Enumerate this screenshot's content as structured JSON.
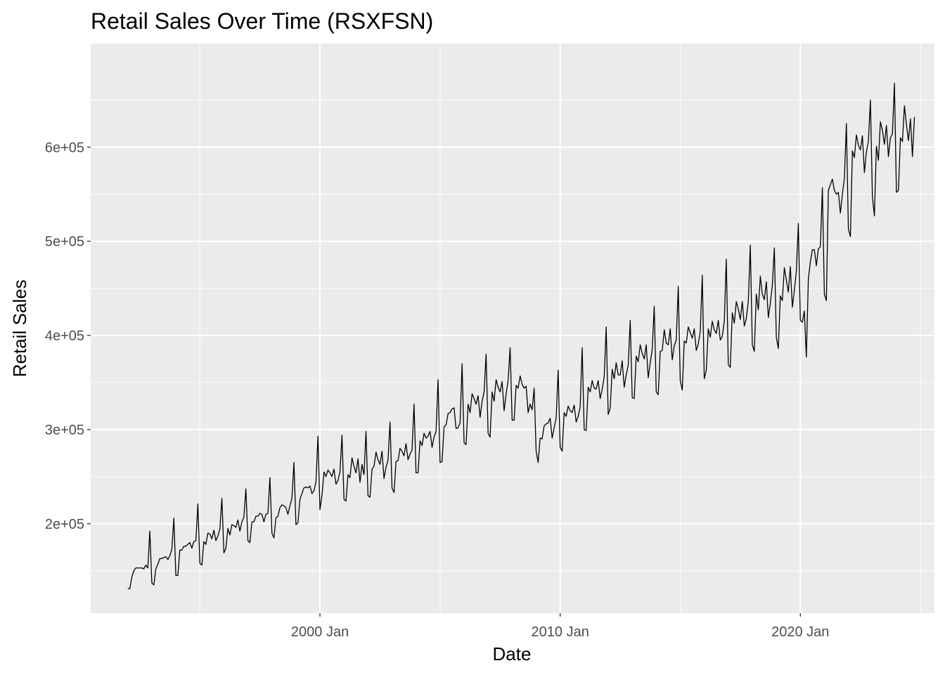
{
  "chart_data": {
    "type": "line",
    "title": "Retail Sales Over Time (RSXFSN)",
    "xlabel": "Date",
    "ylabel": "Retail Sales",
    "x_range": [
      "1990-06-15",
      "2025-08-01"
    ],
    "ylim": [
      105000,
      1000000
    ],
    "y_display_max": 710000,
    "x_ticks": [
      {
        "date": "2000-01-01",
        "label": "2000 Jan"
      },
      {
        "date": "2010-01-01",
        "label": "2010 Jan"
      },
      {
        "date": "2020-01-01",
        "label": "2020 Jan"
      }
    ],
    "x_minor_ticks": [
      "1995-01-01",
      "2005-01-01",
      "2015-01-01",
      "2025-01-01"
    ],
    "y_ticks": [
      {
        "value": 200000,
        "label": "2e+05"
      },
      {
        "value": 300000,
        "label": "3e+05"
      },
      {
        "value": 400000,
        "label": "4e+05"
      },
      {
        "value": 500000,
        "label": "5e+05"
      },
      {
        "value": 600000,
        "label": "6e+05"
      }
    ],
    "y_minor_ticks": [
      150000,
      250000,
      350000,
      450000,
      550000,
      650000
    ],
    "series": [
      {
        "color": "#000000",
        "start": "1992-01",
        "frequency": "monthly",
        "values": [
          131000,
          131000,
          143000,
          150000,
          153000,
          153000,
          153000,
          153000,
          152000,
          156000,
          153000,
          192000,
          137000,
          135000,
          152000,
          157000,
          163000,
          163000,
          164000,
          165000,
          162000,
          166000,
          173000,
          206000,
          145000,
          145000,
          172000,
          172000,
          176000,
          176000,
          178000,
          180000,
          174000,
          181000,
          182000,
          221000,
          158000,
          156000,
          181000,
          178000,
          190000,
          189000,
          184000,
          193000,
          182000,
          187000,
          194000,
          227000,
          169000,
          174000,
          195000,
          188000,
          199000,
          198000,
          196000,
          204000,
          192000,
          202000,
          207000,
          237000,
          182000,
          180000,
          202000,
          202000,
          208000,
          208000,
          211000,
          210000,
          202000,
          210000,
          211000,
          249000,
          190000,
          185000,
          206000,
          208000,
          217000,
          220000,
          219000,
          217000,
          210000,
          219000,
          227000,
          265000,
          199000,
          201000,
          226000,
          232000,
          238000,
          239000,
          238000,
          240000,
          232000,
          235000,
          244000,
          293000,
          215000,
          230000,
          255000,
          250000,
          257000,
          254000,
          250000,
          258000,
          242000,
          246000,
          255000,
          294000,
          226000,
          224000,
          252000,
          249000,
          270000,
          261000,
          254000,
          269000,
          244000,
          263000,
          252000,
          298000,
          230000,
          228000,
          258000,
          261000,
          276000,
          268000,
          263000,
          277000,
          248000,
          260000,
          267000,
          308000,
          238000,
          233000,
          266000,
          267000,
          280000,
          277000,
          272000,
          285000,
          268000,
          274000,
          278000,
          327000,
          254000,
          254000,
          288000,
          283000,
          296000,
          291000,
          293000,
          298000,
          281000,
          292000,
          298000,
          353000,
          265000,
          266000,
          303000,
          305000,
          317000,
          318000,
          322000,
          323000,
          301000,
          302000,
          307000,
          370000,
          286000,
          284000,
          327000,
          318000,
          338000,
          333000,
          327000,
          336000,
          313000,
          330000,
          340000,
          380000,
          296000,
          292000,
          340000,
          330000,
          353000,
          345000,
          340000,
          351000,
          320000,
          338000,
          352000,
          387000,
          310000,
          310000,
          347000,
          344000,
          357000,
          348000,
          344000,
          346000,
          318000,
          327000,
          321000,
          344000,
          277000,
          265000,
          291000,
          290000,
          304000,
          306000,
          307000,
          312000,
          291000,
          302000,
          312000,
          363000,
          281000,
          277000,
          318000,
          314000,
          325000,
          320000,
          318000,
          326000,
          308000,
          314000,
          324000,
          387000,
          300000,
          299000,
          345000,
          340000,
          352000,
          344000,
          343000,
          352000,
          333000,
          343000,
          356000,
          409000,
          316000,
          323000,
          364000,
          354000,
          371000,
          358000,
          358000,
          373000,
          345000,
          358000,
          368000,
          416000,
          334000,
          333000,
          378000,
          372000,
          390000,
          381000,
          375000,
          390000,
          355000,
          371000,
          385000,
          431000,
          340000,
          337000,
          383000,
          384000,
          406000,
          392000,
          390000,
          407000,
          374000,
          389000,
          395000,
          452000,
          352000,
          342000,
          394000,
          392000,
          409000,
          403000,
          397000,
          407000,
          384000,
          391000,
          404000,
          464000,
          354000,
          363000,
          407000,
          398000,
          415000,
          406000,
          402000,
          416000,
          395000,
          399000,
          415000,
          481000,
          369000,
          366000,
          424000,
          413000,
          436000,
          428000,
          417000,
          436000,
          410000,
          418000,
          436000,
          496000,
          390000,
          383000,
          444000,
          427000,
          463000,
          444000,
          438000,
          457000,
          419000,
          434000,
          453000,
          493000,
          398000,
          386000,
          442000,
          437000,
          472000,
          459000,
          446000,
          473000,
          430000,
          448000,
          468000,
          519000,
          416000,
          414000,
          426000,
          377000,
          460000,
          478000,
          491000,
          491000,
          474000,
          492000,
          494000,
          557000,
          444000,
          437000,
          554000,
          560000,
          566000,
          554000,
          550000,
          552000,
          530000,
          550000,
          567000,
          625000,
          513000,
          505000,
          596000,
          589000,
          613000,
          602000,
          597000,
          612000,
          573000,
          595000,
          606000,
          650000,
          547000,
          527000,
          601000,
          586000,
          627000,
          618000,
          603000,
          623000,
          590000,
          610000,
          614000,
          668000,
          552000,
          554000,
          610000,
          606000,
          644000,
          624000,
          607000,
          630000,
          590000,
          632000
        ]
      }
    ]
  }
}
